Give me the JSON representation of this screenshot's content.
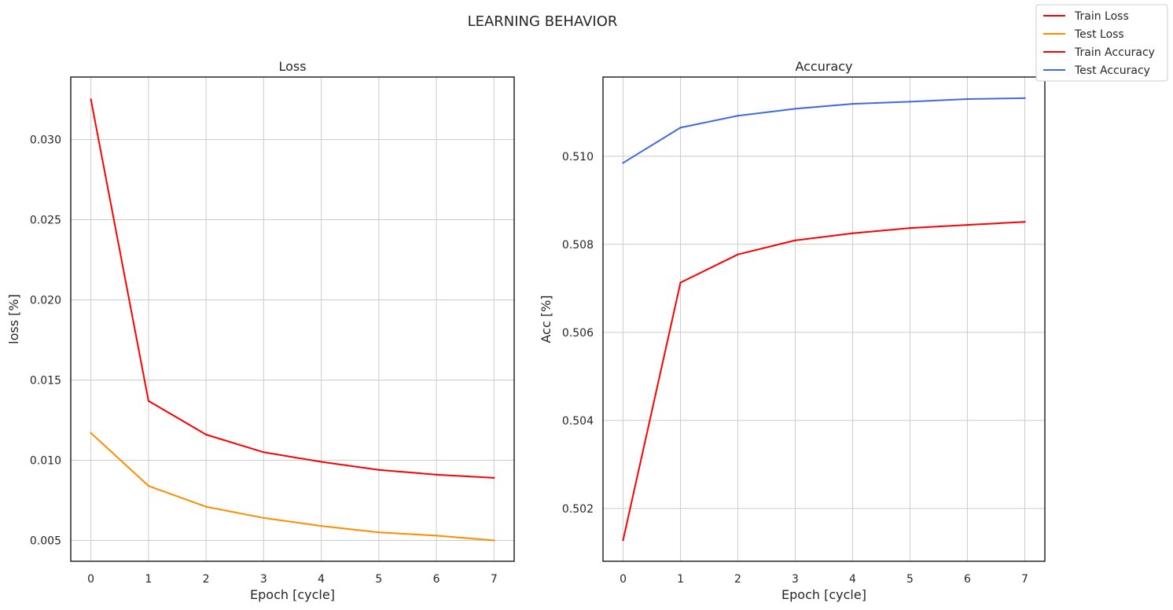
{
  "figure": {
    "title": "LEARNING BEHAVIOR",
    "legend": {
      "placement": "top-right",
      "entries": [
        {
          "label": "Train Loss",
          "color": "#ff0000"
        },
        {
          "label": "Test Loss",
          "color": "#ff8c00"
        },
        {
          "label": "Train Accuracy",
          "color": "#ff0000"
        },
        {
          "label": "Test Accuracy",
          "color": "#4169e1"
        }
      ]
    }
  },
  "chart_data": [
    {
      "type": "line",
      "title": "Loss",
      "xlabel": "Epoch [cycle]",
      "ylabel": "loss [%]",
      "x": [
        0,
        1,
        2,
        3,
        4,
        5,
        6,
        7
      ],
      "xlim": [
        -0.35,
        7.35
      ],
      "ylim": [
        0.0037,
        0.0339
      ],
      "xticks": [
        0,
        1,
        2,
        3,
        4,
        5,
        6,
        7
      ],
      "yticks": [
        0.005,
        0.01,
        0.015,
        0.02,
        0.025,
        0.03
      ],
      "ytick_labels": [
        "0.005",
        "0.010",
        "0.015",
        "0.020",
        "0.025",
        "0.030"
      ],
      "grid": true,
      "series": [
        {
          "name": "Train Loss",
          "color": "#ff0000",
          "values": [
            0.0325,
            0.0137,
            0.0116,
            0.0105,
            0.0099,
            0.0094,
            0.0091,
            0.0089
          ]
        },
        {
          "name": "Test Loss",
          "color": "#ff8c00",
          "values": [
            0.0117,
            0.0084,
            0.0071,
            0.0064,
            0.0059,
            0.0055,
            0.0053,
            0.005
          ]
        }
      ]
    },
    {
      "type": "line",
      "title": "Accuracy",
      "xlabel": "Epoch [cycle]",
      "ylabel": "Acc [%]",
      "x": [
        0,
        1,
        2,
        3,
        4,
        5,
        6,
        7
      ],
      "xlim": [
        -0.35,
        7.35
      ],
      "ylim": [
        0.5008,
        0.5118
      ],
      "xticks": [
        0,
        1,
        2,
        3,
        4,
        5,
        6,
        7
      ],
      "yticks": [
        0.502,
        0.504,
        0.506,
        0.508,
        0.51
      ],
      "ytick_labels": [
        "0.502",
        "0.504",
        "0.506",
        "0.508",
        "0.510"
      ],
      "grid": true,
      "series": [
        {
          "name": "Train Accuracy",
          "color": "#ff0000",
          "values": [
            0.50128,
            0.50713,
            0.50777,
            0.50809,
            0.50825,
            0.50837,
            0.50844,
            0.50851
          ]
        },
        {
          "name": "Test Accuracy",
          "color": "#4169e1",
          "values": [
            0.50985,
            0.51065,
            0.51092,
            0.51108,
            0.51119,
            0.51124,
            0.5113,
            0.51132
          ]
        }
      ]
    }
  ]
}
